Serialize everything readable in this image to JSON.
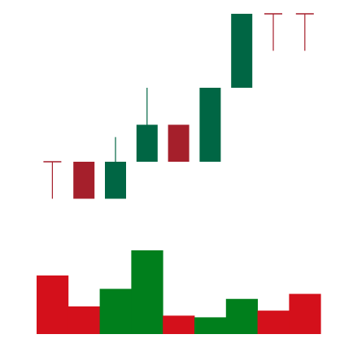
{
  "chart_data": {
    "type": "candlestick",
    "title": "",
    "xlabel": "",
    "ylabel": "",
    "grid": false,
    "legend": "none",
    "colors": {
      "up": "#006644",
      "down": "#a51f2b",
      "doji": "#a51f2b",
      "volume_up": "#007f1c",
      "volume_down": "#d4101b"
    },
    "price_ylim": [
      1.5,
      10.4
    ],
    "volume_ylim": [
      0,
      10
    ],
    "candles": [
      {
        "open": 4.5,
        "high": 4.5,
        "low": 3.0,
        "close": 4.5,
        "direction": "doji"
      },
      {
        "open": 4.5,
        "high": 4.5,
        "low": 3.0,
        "close": 3.0,
        "direction": "down"
      },
      {
        "open": 3.0,
        "high": 5.5,
        "low": 3.0,
        "close": 4.5,
        "direction": "up"
      },
      {
        "open": 4.5,
        "high": 7.5,
        "low": 4.5,
        "close": 6.0,
        "direction": "up"
      },
      {
        "open": 6.0,
        "high": 6.0,
        "low": 4.5,
        "close": 4.5,
        "direction": "down"
      },
      {
        "open": 4.5,
        "high": 7.5,
        "low": 4.5,
        "close": 7.5,
        "direction": "up"
      },
      {
        "open": 7.5,
        "high": 10.5,
        "low": 7.5,
        "close": 10.5,
        "direction": "up"
      },
      {
        "open": 10.5,
        "high": 10.5,
        "low": 9.0,
        "close": 10.5,
        "direction": "doji"
      },
      {
        "open": 10.5,
        "high": 10.5,
        "low": 9.0,
        "close": 10.5,
        "direction": "doji"
      }
    ],
    "volume": [
      {
        "value": 7.0,
        "direction": "down"
      },
      {
        "value": 3.3,
        "direction": "down"
      },
      {
        "value": 5.4,
        "direction": "up"
      },
      {
        "value": 10.0,
        "direction": "up"
      },
      {
        "value": 2.2,
        "direction": "down"
      },
      {
        "value": 2.0,
        "direction": "up"
      },
      {
        "value": 4.2,
        "direction": "up"
      },
      {
        "value": 2.8,
        "direction": "down"
      },
      {
        "value": 4.8,
        "direction": "down"
      }
    ]
  }
}
